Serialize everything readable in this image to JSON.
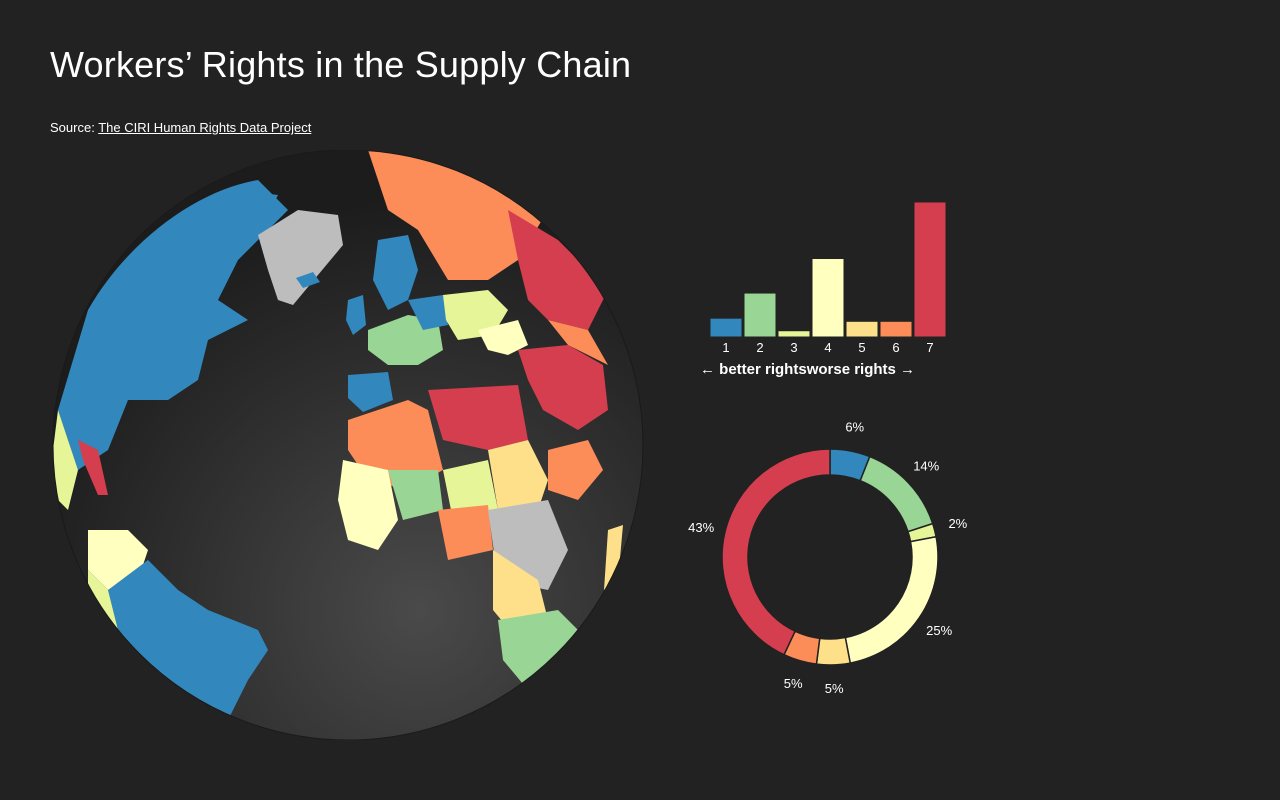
{
  "header": {
    "title": "Workers’ Rights in the Supply Chain",
    "source_prefix": "Source: ",
    "source_link": "The CIRI Human Rights Data Project"
  },
  "colors": {
    "background": "#222222",
    "ocean": "#2b2b2b",
    "rating_1": "#3288bd",
    "rating_2": "#99d594",
    "rating_3": "#e6f598",
    "rating_4": "#ffffbf",
    "rating_5": "#fee08b",
    "rating_6": "#fc8d59",
    "rating_7": "#d53e4f",
    "no_data": "#bdbdbd"
  },
  "chart_data": [
    {
      "type": "bar",
      "categories": [
        "1",
        "2",
        "3",
        "4",
        "5",
        "6",
        "7"
      ],
      "values": [
        6,
        14,
        2,
        25,
        5,
        5,
        43
      ],
      "colors": [
        "#3288bd",
        "#99d594",
        "#e6f598",
        "#ffffbf",
        "#fee08b",
        "#fc8d59",
        "#d53e4f"
      ],
      "xlabel_left": "← better rights",
      "xlabel_right": "worse rights →",
      "grid": false
    },
    {
      "type": "pie",
      "donut": true,
      "labels": [
        "6%",
        "14%",
        "2%",
        "25%",
        "5%",
        "5%",
        "43%"
      ],
      "values": [
        6,
        14,
        2,
        25,
        5,
        5,
        43
      ],
      "colors": [
        "#3288bd",
        "#99d594",
        "#e6f598",
        "#ffffbf",
        "#fee08b",
        "#fc8d59",
        "#d53e4f"
      ]
    }
  ]
}
